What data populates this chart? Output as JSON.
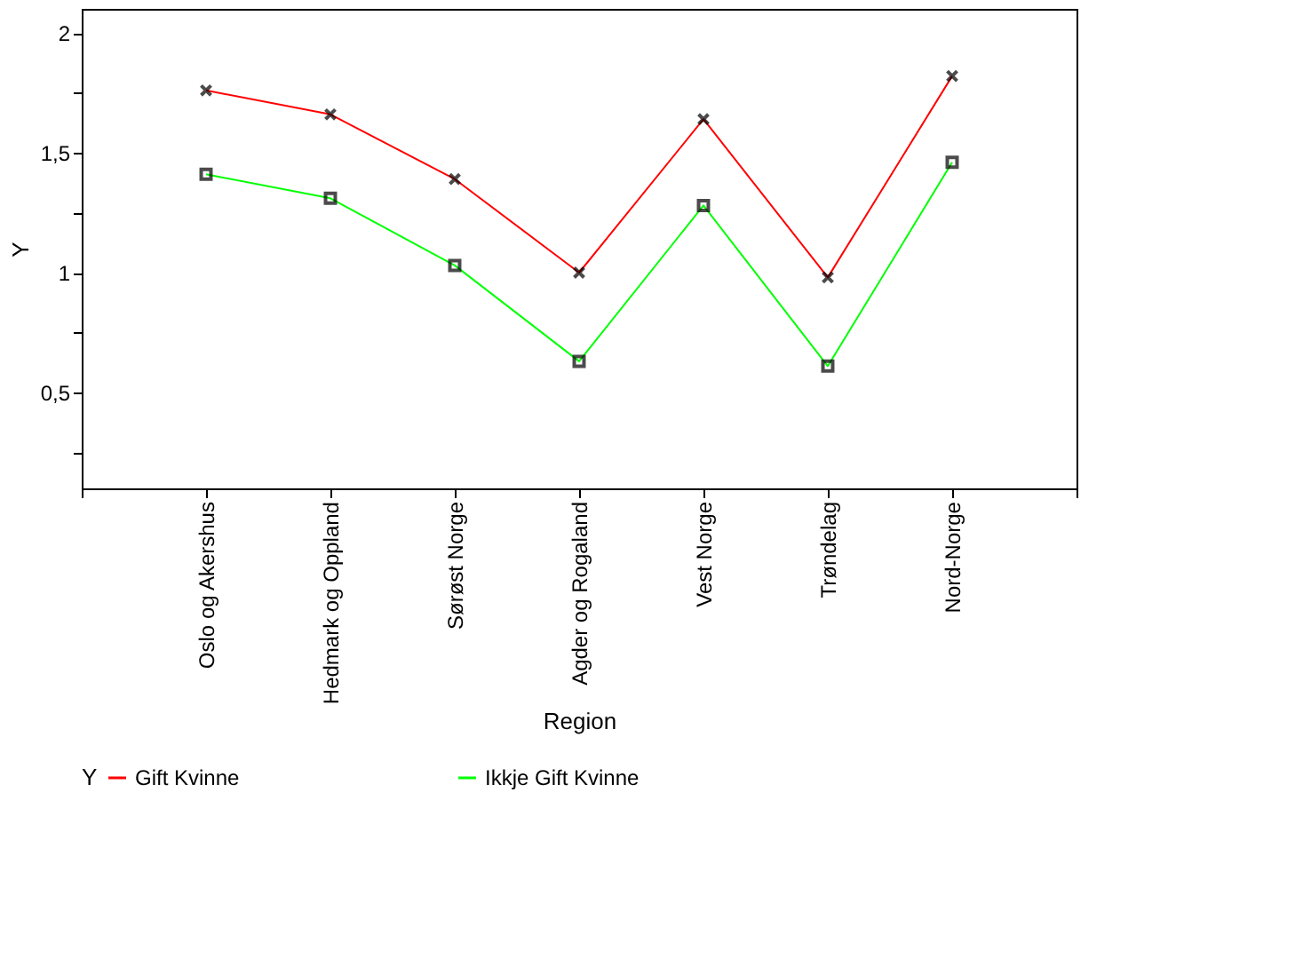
{
  "chart_data": {
    "type": "line",
    "xlabel": "Region",
    "ylabel": "Y",
    "legend_title": "Y",
    "categories": [
      "Oslo og Akershus",
      "Hedmark og Oppland",
      "Sørøst Norge",
      "Agder og Rogaland",
      "Vest Norge",
      "Trøndelag",
      "Nord-Norge"
    ],
    "series": [
      {
        "name": "Gift Kvinne",
        "color": "#ff0000",
        "marker": "cross",
        "values": [
          1.76,
          1.66,
          1.39,
          1.0,
          1.64,
          0.98,
          1.82
        ]
      },
      {
        "name": "Ikkje Gift Kvinne",
        "color": "#00ff00",
        "marker": "square",
        "values": [
          1.41,
          1.31,
          1.03,
          0.63,
          1.28,
          0.61,
          1.46
        ]
      }
    ],
    "ylim": [
      0.1,
      2.1
    ],
    "yticks": [
      {
        "value": 0.25,
        "label": null
      },
      {
        "value": 0.5,
        "label": "0,5"
      },
      {
        "value": 0.75,
        "label": null
      },
      1,
      {
        "value": 1.25,
        "label": null
      },
      {
        "value": 1.5,
        "label": "1,5"
      },
      {
        "value": 1.75,
        "label": null
      },
      2
    ],
    "grid": false,
    "legend": "bottom"
  }
}
